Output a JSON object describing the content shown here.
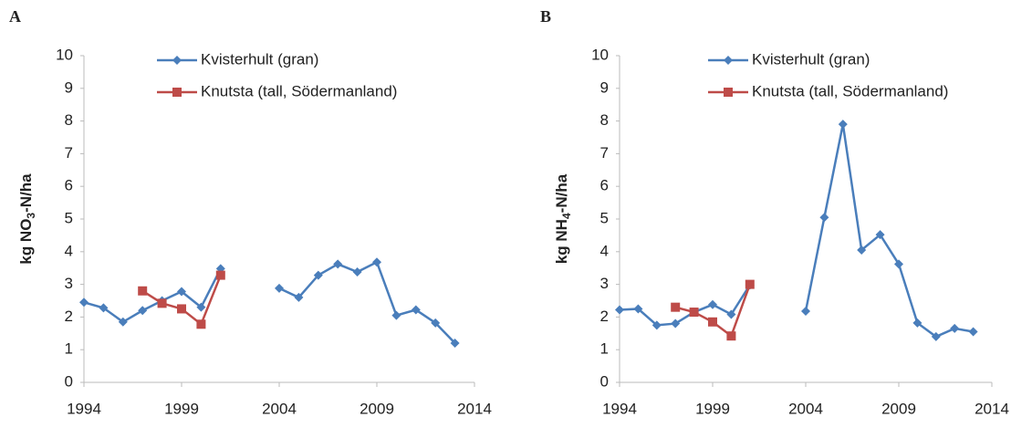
{
  "chart_data": [
    {
      "type": "line",
      "label": "A",
      "ylabel": [
        "kg NO",
        "3",
        "-N/ha"
      ],
      "x": [
        1994,
        1995,
        1996,
        1997,
        1998,
        1999,
        2000,
        2001,
        2002,
        2003,
        2004,
        2005,
        2006,
        2007,
        2008,
        2009,
        2010,
        2011,
        2012,
        2013
      ],
      "xlim": [
        1994,
        2014
      ],
      "xticks": [
        1994,
        1999,
        2004,
        2009,
        2014
      ],
      "ylim": [
        0,
        10
      ],
      "yticks": [
        0,
        1,
        2,
        3,
        4,
        5,
        6,
        7,
        8,
        9,
        10
      ],
      "series": [
        {
          "name": "Kvisterhult (gran)",
          "color": "#4a7ebb",
          "marker": "diamond",
          "values": [
            2.45,
            2.28,
            1.85,
            2.2,
            2.5,
            2.78,
            2.3,
            3.48,
            null,
            null,
            2.88,
            2.6,
            3.28,
            3.62,
            3.38,
            3.68,
            2.05,
            2.22,
            1.82,
            1.2
          ]
        },
        {
          "name": "Knutsta (tall, Södermanland)",
          "color": "#be4b48",
          "marker": "square",
          "values": [
            null,
            null,
            null,
            2.8,
            2.42,
            2.25,
            1.78,
            3.28,
            null,
            null,
            null,
            null,
            null,
            null,
            null,
            null,
            null,
            null,
            null,
            null
          ]
        }
      ]
    },
    {
      "type": "line",
      "label": "B",
      "ylabel": [
        "kg NH",
        "4",
        "-N/ha"
      ],
      "x": [
        1994,
        1995,
        1996,
        1997,
        1998,
        1999,
        2000,
        2001,
        2002,
        2003,
        2004,
        2005,
        2006,
        2007,
        2008,
        2009,
        2010,
        2011,
        2012,
        2013
      ],
      "xlim": [
        1994,
        2014
      ],
      "xticks": [
        1994,
        1999,
        2004,
        2009,
        2014
      ],
      "ylim": [
        0,
        10
      ],
      "yticks": [
        0,
        1,
        2,
        3,
        4,
        5,
        6,
        7,
        8,
        9,
        10
      ],
      "series": [
        {
          "name": "Kvisterhult (gran)",
          "color": "#4a7ebb",
          "marker": "diamond",
          "values": [
            2.22,
            2.25,
            1.75,
            1.8,
            2.15,
            2.38,
            2.08,
            2.98,
            null,
            null,
            2.18,
            5.05,
            7.9,
            4.05,
            4.52,
            3.62,
            1.82,
            1.4,
            1.65,
            1.55
          ]
        },
        {
          "name": "Knutsta (tall, Södermanland)",
          "color": "#be4b48",
          "marker": "square",
          "values": [
            null,
            null,
            null,
            2.3,
            2.15,
            1.85,
            1.42,
            3.0,
            null,
            null,
            null,
            null,
            null,
            null,
            null,
            null,
            null,
            null,
            null,
            null
          ]
        }
      ]
    }
  ]
}
